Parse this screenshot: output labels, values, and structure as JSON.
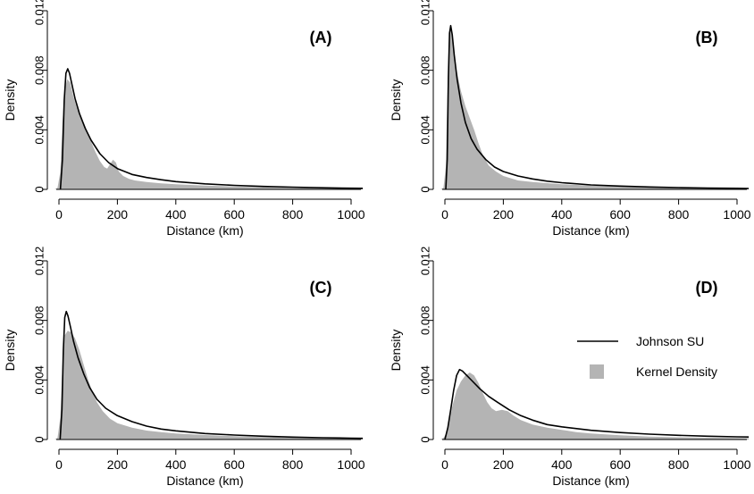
{
  "chart_data": [
    {
      "type": "area",
      "panel_label": "(A)",
      "xlabel": "Distance (km)",
      "ylabel": "Density",
      "xlim": [
        -15,
        1040
      ],
      "ylim": [
        0,
        0.012
      ],
      "xticks": [
        0,
        200,
        400,
        600,
        800,
        1000
      ],
      "yticks": [
        0,
        0.004,
        0.008,
        0.012
      ],
      "ytick_labels": [
        "0",
        "0.004",
        "0.008",
        "0.012"
      ],
      "series": [
        {
          "name": "Kernel Density",
          "kind": "filled-area",
          "color": "#b4b4b4",
          "points": [
            [
              -15,
              0
            ],
            [
              -5,
              0.0001
            ],
            [
              5,
              0.0012
            ],
            [
              12,
              0.0045
            ],
            [
              20,
              0.0068
            ],
            [
              28,
              0.0074
            ],
            [
              38,
              0.0072
            ],
            [
              50,
              0.0062
            ],
            [
              65,
              0.0053
            ],
            [
              80,
              0.0047
            ],
            [
              95,
              0.004
            ],
            [
              110,
              0.0032
            ],
            [
              125,
              0.0025
            ],
            [
              140,
              0.0019
            ],
            [
              155,
              0.0015
            ],
            [
              165,
              0.0014
            ],
            [
              175,
              0.0017
            ],
            [
              185,
              0.002
            ],
            [
              195,
              0.0018
            ],
            [
              205,
              0.0012
            ],
            [
              220,
              0.0009
            ],
            [
              240,
              0.0007
            ],
            [
              260,
              0.0006
            ],
            [
              300,
              0.0005
            ],
            [
              350,
              0.0004
            ],
            [
              400,
              0.00035
            ],
            [
              450,
              0.0003
            ],
            [
              500,
              0.00025
            ],
            [
              600,
              0.0002
            ],
            [
              700,
              0.00015
            ],
            [
              800,
              0.0001
            ],
            [
              900,
              8e-05
            ],
            [
              1000,
              5e-05
            ],
            [
              1040,
              4e-05
            ]
          ]
        },
        {
          "name": "Johnson SU",
          "kind": "line",
          "color": "#000000",
          "points": [
            [
              5,
              0
            ],
            [
              12,
              0.002
            ],
            [
              18,
              0.006
            ],
            [
              24,
              0.0078
            ],
            [
              30,
              0.0081
            ],
            [
              36,
              0.0078
            ],
            [
              45,
              0.007
            ],
            [
              55,
              0.0061
            ],
            [
              70,
              0.0051
            ],
            [
              90,
              0.0041
            ],
            [
              110,
              0.0033
            ],
            [
              140,
              0.0024
            ],
            [
              170,
              0.0018
            ],
            [
              200,
              0.0014
            ],
            [
              250,
              0.001
            ],
            [
              300,
              0.0008
            ],
            [
              350,
              0.00065
            ],
            [
              400,
              0.00052
            ],
            [
              500,
              0.00037
            ],
            [
              600,
              0.00027
            ],
            [
              700,
              0.0002
            ],
            [
              800,
              0.00015
            ],
            [
              900,
              0.00011
            ],
            [
              1000,
              8e-05
            ],
            [
              1040,
              7e-05
            ]
          ]
        }
      ]
    },
    {
      "type": "area",
      "panel_label": "(B)",
      "xlabel": "Distance (km)",
      "ylabel": "Density",
      "xlim": [
        -15,
        1040
      ],
      "ylim": [
        0,
        0.012
      ],
      "xticks": [
        0,
        200,
        400,
        600,
        800,
        1000
      ],
      "yticks": [
        0,
        0.004,
        0.008,
        0.012
      ],
      "ytick_labels": [
        "0",
        "0.004",
        "0.008",
        "0.012"
      ],
      "series": [
        {
          "name": "Kernel Density",
          "kind": "filled-area",
          "color": "#b4b4b4",
          "points": [
            [
              -15,
              0
            ],
            [
              -5,
              0.0001
            ],
            [
              3,
              0.0015
            ],
            [
              8,
              0.006
            ],
            [
              13,
              0.0098
            ],
            [
              18,
              0.011
            ],
            [
              23,
              0.0106
            ],
            [
              30,
              0.0094
            ],
            [
              40,
              0.008
            ],
            [
              55,
              0.0066
            ],
            [
              70,
              0.0056
            ],
            [
              85,
              0.0048
            ],
            [
              100,
              0.004
            ],
            [
              115,
              0.0031
            ],
            [
              130,
              0.0023
            ],
            [
              150,
              0.0016
            ],
            [
              175,
              0.0012
            ],
            [
              200,
              0.0009
            ],
            [
              250,
              0.0006
            ],
            [
              300,
              0.0005
            ],
            [
              400,
              0.00035
            ],
            [
              500,
              0.00025
            ],
            [
              600,
              0.0002
            ],
            [
              700,
              0.00015
            ],
            [
              800,
              0.0001
            ],
            [
              900,
              8e-05
            ],
            [
              1000,
              5e-05
            ],
            [
              1040,
              4e-05
            ]
          ]
        },
        {
          "name": "Johnson SU",
          "kind": "line",
          "color": "#000000",
          "points": [
            [
              3,
              0
            ],
            [
              8,
              0.002
            ],
            [
              12,
              0.0075
            ],
            [
              16,
              0.0105
            ],
            [
              20,
              0.011
            ],
            [
              25,
              0.0104
            ],
            [
              32,
              0.009
            ],
            [
              42,
              0.0074
            ],
            [
              55,
              0.0058
            ],
            [
              70,
              0.0045
            ],
            [
              90,
              0.0034
            ],
            [
              110,
              0.0027
            ],
            [
              140,
              0.002
            ],
            [
              170,
              0.0015
            ],
            [
              200,
              0.0012
            ],
            [
              250,
              0.0009
            ],
            [
              300,
              0.0007
            ],
            [
              350,
              0.00055
            ],
            [
              400,
              0.00045
            ],
            [
              500,
              0.0003
            ],
            [
              600,
              0.00022
            ],
            [
              700,
              0.00016
            ],
            [
              800,
              0.00012
            ],
            [
              900,
              9e-05
            ],
            [
              1000,
              7e-05
            ],
            [
              1040,
              6e-05
            ]
          ]
        }
      ]
    },
    {
      "type": "area",
      "panel_label": "(C)",
      "xlabel": "Distance (km)",
      "ylabel": "Density",
      "xlim": [
        -15,
        1040
      ],
      "ylim": [
        0,
        0.012
      ],
      "xticks": [
        0,
        200,
        400,
        600,
        800,
        1000
      ],
      "yticks": [
        0,
        0.004,
        0.008,
        0.012
      ],
      "ytick_labels": [
        "0",
        "0.004",
        "0.008",
        "0.012"
      ],
      "series": [
        {
          "name": "Kernel Density",
          "kind": "filled-area",
          "color": "#b4b4b4",
          "points": [
            [
              -15,
              0
            ],
            [
              -5,
              0.0001
            ],
            [
              5,
              0.0015
            ],
            [
              12,
              0.005
            ],
            [
              20,
              0.007
            ],
            [
              30,
              0.0073
            ],
            [
              42,
              0.0072
            ],
            [
              55,
              0.0068
            ],
            [
              70,
              0.006
            ],
            [
              85,
              0.005
            ],
            [
              100,
              0.004
            ],
            [
              115,
              0.0032
            ],
            [
              130,
              0.0025
            ],
            [
              150,
              0.0019
            ],
            [
              175,
              0.0014
            ],
            [
              200,
              0.0011
            ],
            [
              250,
              0.0008
            ],
            [
              300,
              0.0006
            ],
            [
              350,
              0.0005
            ],
            [
              400,
              0.0004
            ],
            [
              500,
              0.0003
            ],
            [
              600,
              0.00022
            ],
            [
              700,
              0.00016
            ],
            [
              800,
              0.00012
            ],
            [
              900,
              9e-05
            ],
            [
              1000,
              7e-05
            ],
            [
              1040,
              6e-05
            ]
          ]
        },
        {
          "name": "Johnson SU",
          "kind": "line",
          "color": "#000000",
          "points": [
            [
              4,
              0
            ],
            [
              10,
              0.002
            ],
            [
              15,
              0.006
            ],
            [
              20,
              0.0082
            ],
            [
              25,
              0.0086
            ],
            [
              31,
              0.0083
            ],
            [
              40,
              0.0075
            ],
            [
              50,
              0.0066
            ],
            [
              65,
              0.0055
            ],
            [
              85,
              0.0044
            ],
            [
              105,
              0.0035
            ],
            [
              130,
              0.0027
            ],
            [
              160,
              0.0021
            ],
            [
              200,
              0.0016
            ],
            [
              250,
              0.0012
            ],
            [
              300,
              0.0009
            ],
            [
              350,
              0.0007
            ],
            [
              400,
              0.00058
            ],
            [
              500,
              0.0004
            ],
            [
              600,
              0.0003
            ],
            [
              700,
              0.00022
            ],
            [
              800,
              0.00016
            ],
            [
              900,
              0.00012
            ],
            [
              1000,
              9e-05
            ],
            [
              1040,
              8e-05
            ]
          ]
        }
      ]
    },
    {
      "type": "area",
      "panel_label": "(D)",
      "xlabel": "Distance (km)",
      "ylabel": "Density",
      "xlim": [
        -15,
        1040
      ],
      "ylim": [
        0,
        0.012
      ],
      "xticks": [
        0,
        200,
        400,
        600,
        800,
        1000
      ],
      "yticks": [
        0,
        0.004,
        0.008,
        0.012
      ],
      "ytick_labels": [
        "0",
        "0.004",
        "0.008",
        "0.012"
      ],
      "legend": {
        "placement": "right",
        "entries": [
          {
            "label": "Johnson SU",
            "symbol": "line",
            "color": "#000000"
          },
          {
            "label": "Kernel Density",
            "symbol": "box",
            "color": "#b4b4b4"
          }
        ]
      },
      "series": [
        {
          "name": "Kernel Density",
          "kind": "filled-area",
          "color": "#b4b4b4",
          "points": [
            [
              -15,
              0
            ],
            [
              -5,
              0.0001
            ],
            [
              5,
              0.0004
            ],
            [
              15,
              0.0012
            ],
            [
              25,
              0.0022
            ],
            [
              40,
              0.0033
            ],
            [
              55,
              0.0039
            ],
            [
              70,
              0.0043
            ],
            [
              85,
              0.0045
            ],
            [
              100,
              0.0043
            ],
            [
              115,
              0.0038
            ],
            [
              130,
              0.0031
            ],
            [
              145,
              0.0025
            ],
            [
              160,
              0.0021
            ],
            [
              175,
              0.0019
            ],
            [
              195,
              0.002
            ],
            [
              215,
              0.0019
            ],
            [
              235,
              0.0016
            ],
            [
              260,
              0.0013
            ],
            [
              300,
              0.001
            ],
            [
              350,
              0.0008
            ],
            [
              400,
              0.00065
            ],
            [
              450,
              0.0005
            ],
            [
              500,
              0.0004
            ],
            [
              600,
              0.00028
            ],
            [
              700,
              0.0002
            ],
            [
              800,
              0.00015
            ],
            [
              900,
              0.00012
            ],
            [
              1000,
              0.0001
            ],
            [
              1040,
              9e-05
            ]
          ]
        },
        {
          "name": "Johnson SU",
          "kind": "line",
          "color": "#000000",
          "points": [
            [
              0,
              0
            ],
            [
              10,
              0.0008
            ],
            [
              20,
              0.002
            ],
            [
              30,
              0.0033
            ],
            [
              40,
              0.0043
            ],
            [
              50,
              0.0047
            ],
            [
              60,
              0.0046
            ],
            [
              75,
              0.0043
            ],
            [
              95,
              0.0039
            ],
            [
              120,
              0.0034
            ],
            [
              150,
              0.0029
            ],
            [
              180,
              0.0025
            ],
            [
              220,
              0.002
            ],
            [
              260,
              0.0016
            ],
            [
              300,
              0.0013
            ],
            [
              350,
              0.001
            ],
            [
              400,
              0.00085
            ],
            [
              500,
              0.00062
            ],
            [
              600,
              0.00047
            ],
            [
              700,
              0.00036
            ],
            [
              800,
              0.00028
            ],
            [
              900,
              0.00022
            ],
            [
              1000,
              0.00018
            ],
            [
              1040,
              0.00017
            ]
          ]
        }
      ]
    }
  ]
}
